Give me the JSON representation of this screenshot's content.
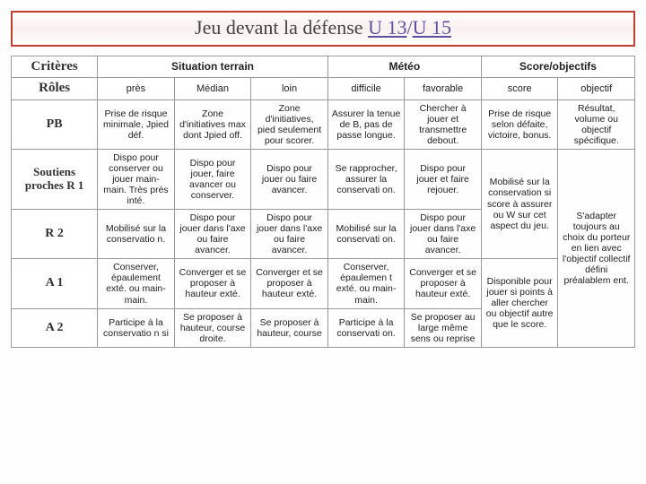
{
  "title_plain": "Jeu devant la défense ",
  "title_u1": "U 13",
  "title_sep": "/",
  "title_u2": "U 15",
  "headers": {
    "criteres": "Critères",
    "roles": "Rôles",
    "situation": "Situation terrain",
    "meteo": "Météo",
    "scoreobj": "Score/objectifs",
    "pres": "près",
    "median": "Médian",
    "loin": "loin",
    "difficile": "difficile",
    "favorable": "favorable",
    "score": "score",
    "objectif": "objectif"
  },
  "rows": {
    "pb": {
      "role": "PB",
      "pres": "Prise de risque minimale, Jpied déf.",
      "median": "Zone d'initiatives max dont Jpied off.",
      "loin": "Zone d'initiatives, pied seulement pour scorer.",
      "difficile": "Assurer la tenue de B, pas de passe longue.",
      "favorable": "Chercher à jouer et transmettre debout.",
      "score": "Prise de risque selon défaite, victoire, bonus.",
      "objectif": "Résultat, volume ou objectif spécifique."
    },
    "r1": {
      "role": "Soutiens proches R 1",
      "pres": "Dispo pour conserver ou jouer main-main. Très près inté.",
      "median": "Dispo pour jouer, faire avancer ou conserver.",
      "loin": "Dispo pour jouer ou faire avancer.",
      "difficile": "Se rapprocher, assurer la conservati on.",
      "favorable": "Dispo pour jouer et faire rejouer."
    },
    "r2": {
      "role": "R 2",
      "pres": "Mobilisé sur la conservatio n.",
      "median": "Dispo pour jouer dans l'axe ou faire avancer.",
      "loin": "Dispo pour jouer dans l'axe ou faire avancer.",
      "difficile": "Mobilisé sur la conservati on.",
      "favorable": "Dispo pour jouer dans l'axe ou faire avancer."
    },
    "a1": {
      "role": "A 1",
      "pres": "Conserver, épaulement exté. ou main-main.",
      "median": "Converger et se proposer à hauteur exté.",
      "loin": "Converger et se proposer à hauteur exté.",
      "difficile": "Conserver, épaulemen t exté. ou main-main.",
      "favorable": "Converger et se proposer à hauteur exté."
    },
    "a2": {
      "role": "A 2",
      "pres": "Participe à la conservatio n si",
      "median": "Se proposer à hauteur, course droite.",
      "loin": "Se proposer à hauteur, course",
      "difficile": "Participe à la conservati on.",
      "favorable": "Se proposer au large même sens ou reprise"
    },
    "merged": {
      "score": "Mobilisé sur la conservation si score à assurer ou W sur cet aspect du jeu.",
      "score2": "Disponible pour jouer si points à aller chercher ou objectif autre que le score.",
      "objectif": "S'adapter toujours au choix du porteur en lien avec l'objectif collectif défini préalablem ent."
    }
  }
}
